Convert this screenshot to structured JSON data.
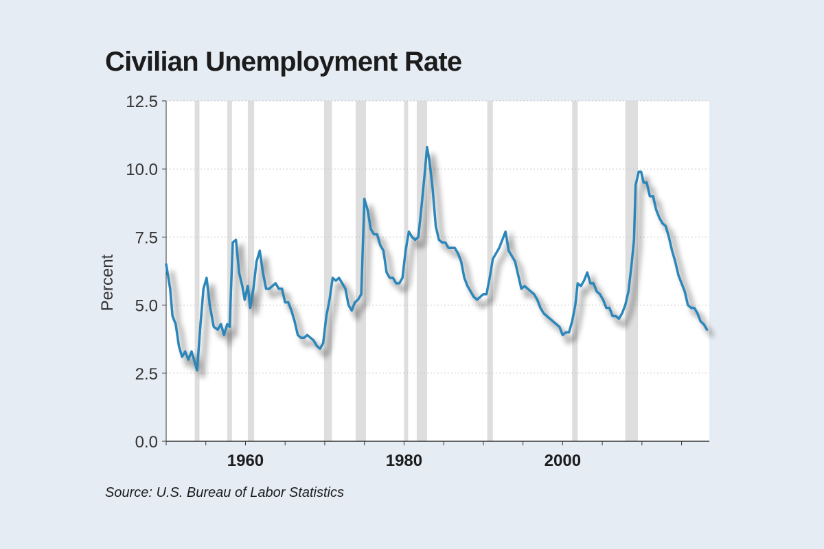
{
  "chart_data": {
    "type": "line",
    "title": "Civilian Unemployment Rate",
    "xlabel": "",
    "ylabel": "Percent",
    "source": "Source: U.S. Bureau of Labor Statistics",
    "xlim": [
      1950,
      2018.5
    ],
    "ylim": [
      0,
      12.5
    ],
    "y_ticks": [
      "0.0",
      "2.5",
      "5.0",
      "7.5",
      "10.0",
      "12.5"
    ],
    "x_ticks": [
      "1960",
      "1980",
      "2000"
    ],
    "grid": "horizontal dotted",
    "line_color": "#2b86b9",
    "recession_color": "#dedede",
    "recessions": [
      [
        1953.6,
        1954.2
      ],
      [
        1957.7,
        1958.3
      ],
      [
        1960.3,
        1961.1
      ],
      [
        1969.9,
        1970.9
      ],
      [
        1973.9,
        1975.2
      ],
      [
        1980.0,
        1980.5
      ],
      [
        1981.6,
        1982.9
      ],
      [
        1990.5,
        1991.2
      ],
      [
        2001.2,
        2001.9
      ],
      [
        2007.9,
        2009.5
      ]
    ],
    "series": [
      {
        "values": [
          [
            1950.0,
            6.5
          ],
          [
            1950.5,
            5.6
          ],
          [
            1950.8,
            4.6
          ],
          [
            1951.2,
            4.3
          ],
          [
            1951.6,
            3.5
          ],
          [
            1952.0,
            3.1
          ],
          [
            1952.4,
            3.3
          ],
          [
            1952.8,
            3.0
          ],
          [
            1953.2,
            3.3
          ],
          [
            1953.6,
            2.9
          ],
          [
            1953.9,
            2.6
          ],
          [
            1954.3,
            4.2
          ],
          [
            1954.7,
            5.6
          ],
          [
            1955.1,
            6.0
          ],
          [
            1955.5,
            5.0
          ],
          [
            1956.0,
            4.2
          ],
          [
            1956.5,
            4.1
          ],
          [
            1956.9,
            4.3
          ],
          [
            1957.3,
            3.9
          ],
          [
            1957.7,
            4.3
          ],
          [
            1958.0,
            4.2
          ],
          [
            1958.4,
            7.3
          ],
          [
            1958.8,
            7.4
          ],
          [
            1959.2,
            6.2
          ],
          [
            1959.6,
            5.7
          ],
          [
            1959.9,
            5.2
          ],
          [
            1960.3,
            5.7
          ],
          [
            1960.6,
            4.9
          ],
          [
            1961.0,
            5.6
          ],
          [
            1961.4,
            6.6
          ],
          [
            1961.8,
            7.0
          ],
          [
            1962.2,
            6.2
          ],
          [
            1962.6,
            5.6
          ],
          [
            1963.0,
            5.6
          ],
          [
            1963.4,
            5.7
          ],
          [
            1963.8,
            5.8
          ],
          [
            1964.2,
            5.6
          ],
          [
            1964.6,
            5.6
          ],
          [
            1965.0,
            5.1
          ],
          [
            1965.4,
            5.1
          ],
          [
            1965.8,
            4.8
          ],
          [
            1966.2,
            4.4
          ],
          [
            1966.6,
            3.9
          ],
          [
            1967.0,
            3.8
          ],
          [
            1967.4,
            3.8
          ],
          [
            1967.8,
            3.9
          ],
          [
            1968.2,
            3.8
          ],
          [
            1968.6,
            3.7
          ],
          [
            1969.0,
            3.5
          ],
          [
            1969.4,
            3.4
          ],
          [
            1969.8,
            3.6
          ],
          [
            1970.2,
            4.6
          ],
          [
            1970.6,
            5.2
          ],
          [
            1971.0,
            6.0
          ],
          [
            1971.4,
            5.9
          ],
          [
            1971.8,
            6.0
          ],
          [
            1972.2,
            5.8
          ],
          [
            1972.6,
            5.6
          ],
          [
            1973.0,
            5.0
          ],
          [
            1973.4,
            4.8
          ],
          [
            1973.8,
            5.1
          ],
          [
            1974.2,
            5.2
          ],
          [
            1974.6,
            5.4
          ],
          [
            1975.0,
            8.9
          ],
          [
            1975.4,
            8.5
          ],
          [
            1975.8,
            7.8
          ],
          [
            1976.2,
            7.6
          ],
          [
            1976.6,
            7.6
          ],
          [
            1977.0,
            7.2
          ],
          [
            1977.4,
            7.0
          ],
          [
            1977.8,
            6.2
          ],
          [
            1978.2,
            6.0
          ],
          [
            1978.6,
            6.0
          ],
          [
            1979.0,
            5.8
          ],
          [
            1979.4,
            5.8
          ],
          [
            1979.8,
            6.0
          ],
          [
            1980.2,
            7.0
          ],
          [
            1980.6,
            7.7
          ],
          [
            1981.0,
            7.5
          ],
          [
            1981.4,
            7.4
          ],
          [
            1981.8,
            7.5
          ],
          [
            1982.2,
            8.6
          ],
          [
            1982.6,
            9.8
          ],
          [
            1982.9,
            10.8
          ],
          [
            1983.2,
            10.3
          ],
          [
            1983.6,
            9.3
          ],
          [
            1984.0,
            7.9
          ],
          [
            1984.4,
            7.4
          ],
          [
            1984.8,
            7.3
          ],
          [
            1985.2,
            7.3
          ],
          [
            1985.6,
            7.1
          ],
          [
            1986.0,
            7.1
          ],
          [
            1986.4,
            7.1
          ],
          [
            1986.8,
            6.9
          ],
          [
            1987.2,
            6.6
          ],
          [
            1987.6,
            6.0
          ],
          [
            1988.0,
            5.7
          ],
          [
            1988.4,
            5.5
          ],
          [
            1988.8,
            5.3
          ],
          [
            1989.2,
            5.2
          ],
          [
            1989.6,
            5.3
          ],
          [
            1990.0,
            5.4
          ],
          [
            1990.4,
            5.4
          ],
          [
            1990.8,
            6.0
          ],
          [
            1991.2,
            6.7
          ],
          [
            1991.6,
            6.9
          ],
          [
            1992.0,
            7.1
          ],
          [
            1992.4,
            7.4
          ],
          [
            1992.8,
            7.7
          ],
          [
            1993.2,
            7.0
          ],
          [
            1993.6,
            6.8
          ],
          [
            1994.0,
            6.6
          ],
          [
            1994.4,
            6.1
          ],
          [
            1994.8,
            5.6
          ],
          [
            1995.2,
            5.7
          ],
          [
            1995.6,
            5.6
          ],
          [
            1996.0,
            5.5
          ],
          [
            1996.4,
            5.4
          ],
          [
            1996.8,
            5.2
          ],
          [
            1997.2,
            4.9
          ],
          [
            1997.6,
            4.7
          ],
          [
            1998.0,
            4.6
          ],
          [
            1998.4,
            4.5
          ],
          [
            1998.8,
            4.4
          ],
          [
            1999.2,
            4.3
          ],
          [
            1999.6,
            4.2
          ],
          [
            2000.0,
            3.9
          ],
          [
            2000.4,
            4.0
          ],
          [
            2000.8,
            4.0
          ],
          [
            2001.2,
            4.4
          ],
          [
            2001.6,
            5.0
          ],
          [
            2001.9,
            5.8
          ],
          [
            2002.3,
            5.7
          ],
          [
            2002.7,
            5.9
          ],
          [
            2003.1,
            6.2
          ],
          [
            2003.5,
            5.8
          ],
          [
            2003.9,
            5.8
          ],
          [
            2004.3,
            5.5
          ],
          [
            2004.7,
            5.4
          ],
          [
            2005.1,
            5.2
          ],
          [
            2005.5,
            4.9
          ],
          [
            2005.9,
            4.9
          ],
          [
            2006.3,
            4.6
          ],
          [
            2006.7,
            4.6
          ],
          [
            2007.1,
            4.5
          ],
          [
            2007.5,
            4.7
          ],
          [
            2007.9,
            5.0
          ],
          [
            2008.3,
            5.5
          ],
          [
            2008.7,
            6.5
          ],
          [
            2009.0,
            7.4
          ],
          [
            2009.2,
            9.4
          ],
          [
            2009.6,
            9.9
          ],
          [
            2009.9,
            9.9
          ],
          [
            2010.2,
            9.5
          ],
          [
            2010.6,
            9.5
          ],
          [
            2011.0,
            9.0
          ],
          [
            2011.4,
            9.0
          ],
          [
            2011.8,
            8.5
          ],
          [
            2012.2,
            8.2
          ],
          [
            2012.6,
            8.0
          ],
          [
            2013.0,
            7.9
          ],
          [
            2013.4,
            7.5
          ],
          [
            2013.8,
            7.0
          ],
          [
            2014.2,
            6.6
          ],
          [
            2014.6,
            6.1
          ],
          [
            2015.0,
            5.8
          ],
          [
            2015.4,
            5.5
          ],
          [
            2015.8,
            5.0
          ],
          [
            2016.2,
            4.9
          ],
          [
            2016.6,
            4.9
          ],
          [
            2017.0,
            4.7
          ],
          [
            2017.4,
            4.4
          ],
          [
            2017.8,
            4.3
          ],
          [
            2018.2,
            4.1
          ]
        ]
      }
    ]
  }
}
